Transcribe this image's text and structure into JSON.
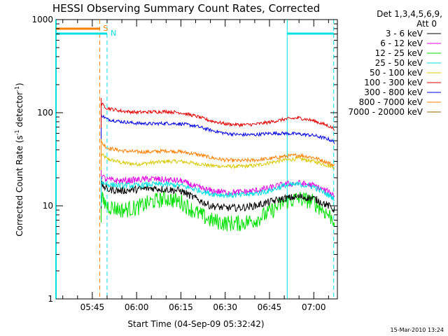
{
  "chart_data": {
    "type": "line",
    "title": "HESSI Observing Summary Count Rates, Corrected",
    "xlabel": "Start Time (04-Sep-09 05:32:42)",
    "ylabel_main": "Corrected Count Rate (s",
    "ylabel_sup1": "-1",
    "ylabel_mid": " detector",
    "ylabel_sup2": "-1",
    "ylabel_end": ")",
    "ylim": [
      1,
      1000
    ],
    "yscale": "log",
    "xlim_minutes": [
      "05:32:42",
      "07:08:00"
    ],
    "yticks": [
      {
        "value": 1,
        "label": "1"
      },
      {
        "value": 10,
        "label": "10"
      },
      {
        "value": 100,
        "label": "100"
      },
      {
        "value": 1000,
        "label": "1000"
      }
    ],
    "xticks": [
      {
        "time": "05:45",
        "label": "05:45"
      },
      {
        "time": "06:00",
        "label": "06:00"
      },
      {
        "time": "06:15",
        "label": "06:15"
      },
      {
        "time": "06:30",
        "label": "06:30"
      },
      {
        "time": "06:45",
        "label": "06:45"
      },
      {
        "time": "07:00",
        "label": "07:00"
      }
    ],
    "legend": {
      "header1": "Det 1,3,4,5,6,9,",
      "header2": "Att 0",
      "placement": "right"
    },
    "series": [
      {
        "name": "3 - 6 keV",
        "color": "#000000",
        "x": [
          "05:48",
          "05:50",
          "05:55",
          "06:00",
          "06:05",
          "06:10",
          "06:15",
          "06:20",
          "06:25",
          "06:30",
          "06:35",
          "06:40",
          "06:45",
          "06:50",
          "06:55",
          "07:00",
          "07:05",
          "07:07"
        ],
        "y": [
          17,
          15,
          14.5,
          15,
          15.5,
          15,
          14.5,
          12,
          10,
          9.5,
          9.5,
          10,
          11,
          12,
          12.5,
          12,
          10,
          9
        ]
      },
      {
        "name": "6 - 12 keV",
        "color": "#e000e0",
        "x": [
          "05:48",
          "05:50",
          "05:55",
          "06:00",
          "06:05",
          "06:10",
          "06:15",
          "06:20",
          "06:25",
          "06:30",
          "06:35",
          "06:40",
          "06:45",
          "06:50",
          "06:55",
          "07:00",
          "07:05",
          "07:07"
        ],
        "y": [
          21,
          19,
          18.5,
          19,
          19.5,
          19,
          18.5,
          16,
          14.5,
          14,
          14,
          14.5,
          15.5,
          17,
          17.5,
          16.5,
          14,
          13
        ]
      },
      {
        "name": "12 - 25 keV",
        "color": "#00e000",
        "x": [
          "05:48",
          "05:50",
          "05:55",
          "06:00",
          "06:05",
          "06:10",
          "06:15",
          "06:20",
          "06:25",
          "06:30",
          "06:35",
          "06:40",
          "06:45",
          "06:50",
          "06:55",
          "07:00",
          "07:05",
          "07:07"
        ],
        "y": [
          12,
          10,
          9,
          9.5,
          11,
          12,
          11,
          8.5,
          7,
          6.5,
          6.5,
          7,
          8.5,
          11,
          12,
          11,
          8,
          7
        ]
      },
      {
        "name": "25 - 50 keV",
        "color": "#00e0e0",
        "x": [
          "05:48",
          "05:50",
          "05:55",
          "06:00",
          "06:05",
          "06:10",
          "06:15",
          "06:20",
          "06:25",
          "06:30",
          "06:35",
          "06:40",
          "06:45",
          "06:50",
          "06:55",
          "07:00",
          "07:05",
          "07:07"
        ],
        "y": [
          18,
          17,
          16.5,
          16.5,
          17,
          17,
          16.5,
          15,
          13.5,
          13,
          13,
          13.5,
          14.5,
          16.5,
          17,
          16,
          13,
          12
        ]
      },
      {
        "name": "50 - 100 keV",
        "color": "#d8c800",
        "x": [
          "05:48",
          "05:50",
          "05:55",
          "06:00",
          "06:05",
          "06:10",
          "06:15",
          "06:20",
          "06:25",
          "06:30",
          "06:35",
          "06:40",
          "06:45",
          "06:50",
          "06:55",
          "07:00",
          "07:05",
          "07:07"
        ],
        "y": [
          36,
          32,
          29,
          28,
          29,
          30,
          30,
          28.5,
          27,
          26.5,
          26.5,
          27,
          29,
          31,
          32,
          30,
          27,
          26
        ]
      },
      {
        "name": "100 - 300 keV",
        "color": "#e00000",
        "x": [
          "05:48",
          "05:50",
          "05:55",
          "06:00",
          "06:05",
          "06:10",
          "06:15",
          "06:20",
          "06:25",
          "06:30",
          "06:35",
          "06:40",
          "06:45",
          "06:50",
          "06:55",
          "07:00",
          "07:05",
          "07:07"
        ],
        "y": [
          125,
          112,
          104,
          101,
          102,
          103,
          100,
          92,
          82,
          76,
          74,
          75,
          79,
          85,
          88,
          82,
          72,
          67
        ]
      },
      {
        "name": "300 - 800 keV",
        "color": "#0000e0",
        "x": [
          "05:48",
          "05:50",
          "05:55",
          "06:00",
          "06:05",
          "06:10",
          "06:15",
          "06:20",
          "06:25",
          "06:30",
          "06:35",
          "06:40",
          "06:45",
          "06:50",
          "06:55",
          "07:00",
          "07:05",
          "07:07"
        ],
        "y": [
          95,
          85,
          80,
          77,
          76,
          77,
          76,
          72,
          65,
          60,
          58,
          58,
          60,
          60,
          59,
          57,
          52,
          48
        ]
      },
      {
        "name": "800 - 7000 keV",
        "color": "#ff8000",
        "x": [
          "05:48",
          "05:50",
          "05:55",
          "06:00",
          "06:05",
          "06:10",
          "06:15",
          "06:20",
          "06:25",
          "06:30",
          "06:35",
          "06:40",
          "06:45",
          "06:50",
          "06:55",
          "07:00",
          "07:05",
          "07:07"
        ],
        "y": [
          48,
          42,
          39,
          38,
          38,
          39,
          38,
          36,
          33,
          31,
          30.5,
          31,
          32,
          34,
          35,
          33,
          29,
          27
        ]
      },
      {
        "name": "7000 - 20000 keV",
        "color": "#a06000",
        "x": [],
        "y": []
      }
    ],
    "markers": [
      {
        "label": "S",
        "color": "#ff8000"
      },
      {
        "label": "N",
        "color": "#00e0e0"
      }
    ]
  },
  "footer": {
    "timestamp": "15-Mar-2010 13:24"
  }
}
